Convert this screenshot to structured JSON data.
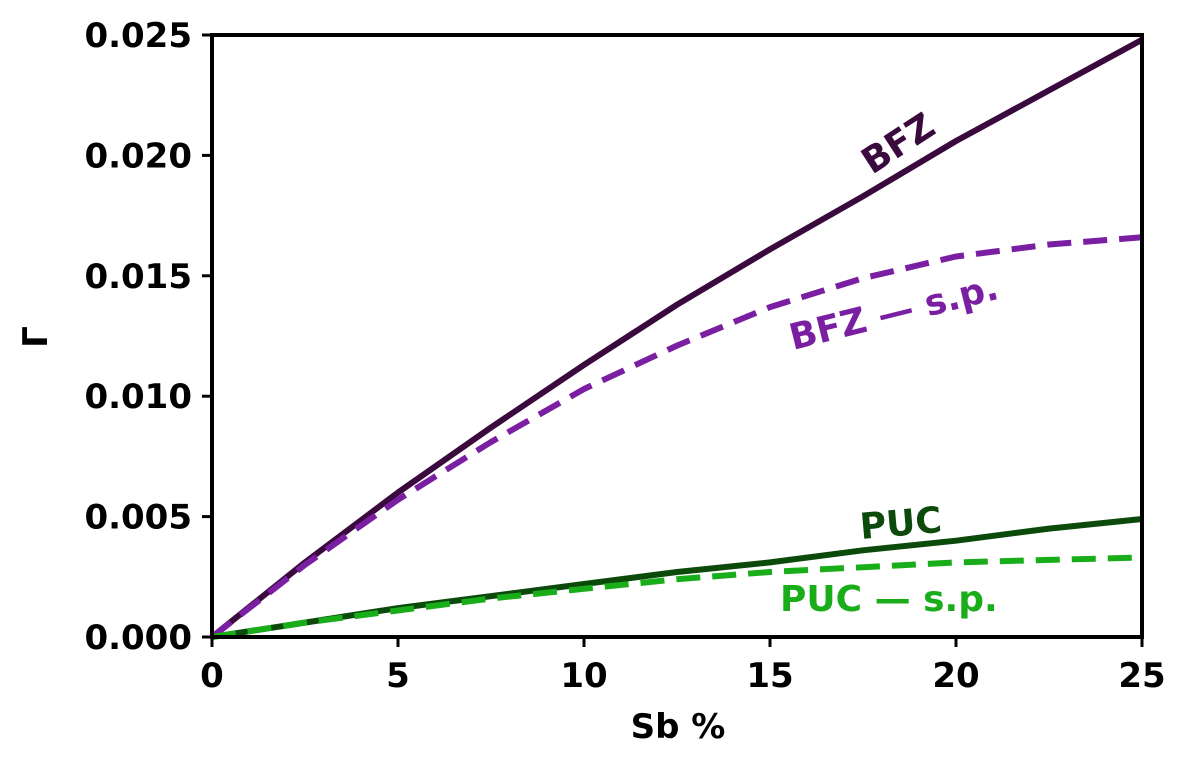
{
  "chart_data": {
    "type": "line",
    "xlabel": "Sb %",
    "ylabel": "Γ",
    "xlim": [
      0,
      25
    ],
    "ylim": [
      0,
      0.025
    ],
    "grid": false,
    "legend": "none",
    "xticks": [
      0,
      5,
      10,
      15,
      20,
      25
    ],
    "xtick_labels": [
      "0",
      "5",
      "10",
      "15",
      "20",
      "25"
    ],
    "yticks": [
      0,
      0.005,
      0.01,
      0.015,
      0.02,
      0.025
    ],
    "ytick_labels": [
      "0.000",
      "0.005",
      "0.010",
      "0.015",
      "0.020",
      "0.025"
    ],
    "series": [
      {
        "name": "BFZ",
        "color": "#3a0a3e",
        "style": "solid",
        "x": [
          0,
          2.5,
          5,
          7.5,
          10,
          12.5,
          15,
          17.5,
          20,
          22.5,
          25
        ],
        "y": [
          0,
          0.0031,
          0.006,
          0.0087,
          0.0113,
          0.0138,
          0.0161,
          0.0183,
          0.0206,
          0.0227,
          0.0248
        ]
      },
      {
        "name": "BFZ — s.p.",
        "color": "#7b1fa2",
        "style": "dashed",
        "x": [
          0,
          2.5,
          5,
          7.5,
          10,
          12.5,
          15,
          17.5,
          20,
          22.5,
          25
        ],
        "y": [
          0,
          0.003,
          0.0057,
          0.0081,
          0.0103,
          0.0121,
          0.0137,
          0.0149,
          0.0158,
          0.0163,
          0.0166
        ]
      },
      {
        "name": "PUC",
        "color": "#0b4a0b",
        "style": "solid",
        "x": [
          0,
          2.5,
          5,
          7.5,
          10,
          12.5,
          15,
          17.5,
          20,
          22.5,
          25
        ],
        "y": [
          0,
          0.0006,
          0.0012,
          0.0017,
          0.0022,
          0.0027,
          0.0031,
          0.0036,
          0.004,
          0.0045,
          0.0049
        ]
      },
      {
        "name": "PUC — s.p.",
        "color": "#1aad1a",
        "style": "dashed",
        "x": [
          0,
          2.5,
          5,
          7.5,
          10,
          12.5,
          15,
          17.5,
          20,
          22.5,
          25
        ],
        "y": [
          0,
          0.0006,
          0.0011,
          0.0016,
          0.002,
          0.0024,
          0.0027,
          0.0029,
          0.0031,
          0.0032,
          0.0033
        ]
      }
    ]
  }
}
